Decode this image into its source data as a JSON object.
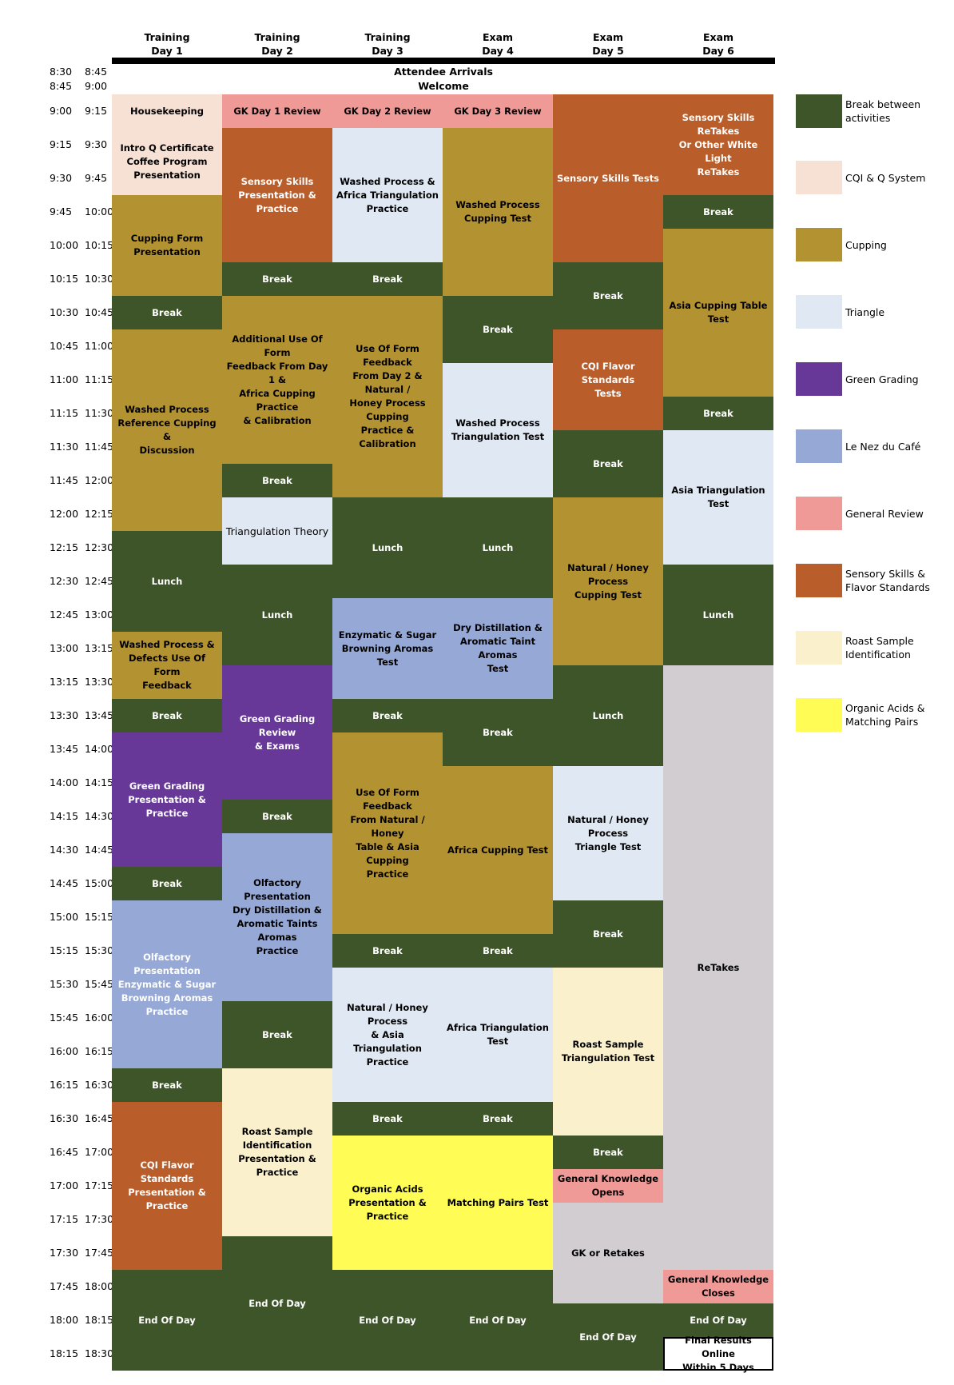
{
  "colors": {
    "break": "#3e5429",
    "cqi": "#f6e1d4",
    "cupping": "#b39232",
    "triangle": "#dfe8f3",
    "green_grading": "#683899",
    "nez": "#95a8d6",
    "review": "#f09a98",
    "sensory": "#b95d2a",
    "roast": "#fbf0cc",
    "organic": "#fffc55",
    "retakes": "#d1cdd0"
  },
  "days": [
    {
      "line1": "Training",
      "line2": "Day 1"
    },
    {
      "line1": "Training",
      "line2": "Day 2"
    },
    {
      "line1": "Training",
      "line2": "Day 3"
    },
    {
      "line1": "Exam",
      "line2": "Day 4"
    },
    {
      "line1": "Exam",
      "line2": "Day 5"
    },
    {
      "line1": "Exam",
      "line2": "Day 6"
    }
  ],
  "top_rows": [
    {
      "start": "8:30",
      "end": "8:45",
      "label": "Attendee Arrivals"
    },
    {
      "start": "8:45",
      "end": "9:00",
      "label": "Welcome"
    }
  ],
  "time_slots": [
    [
      "9:00",
      "9:15"
    ],
    [
      "9:15",
      "9:30"
    ],
    [
      "9:30",
      "9:45"
    ],
    [
      "9:45",
      "10:00"
    ],
    [
      "10:00",
      "10:15"
    ],
    [
      "10:15",
      "10:30"
    ],
    [
      "10:30",
      "10:45"
    ],
    [
      "10:45",
      "11:00"
    ],
    [
      "11:00",
      "11:15"
    ],
    [
      "11:15",
      "11:30"
    ],
    [
      "11:30",
      "11:45"
    ],
    [
      "11:45",
      "12:00"
    ],
    [
      "12:00",
      "12:15"
    ],
    [
      "12:15",
      "12:30"
    ],
    [
      "12:30",
      "12:45"
    ],
    [
      "12:45",
      "13:00"
    ],
    [
      "13:00",
      "13:15"
    ],
    [
      "13:15",
      "13:30"
    ],
    [
      "13:30",
      "13:45"
    ],
    [
      "13:45",
      "14:00"
    ],
    [
      "14:00",
      "14:15"
    ],
    [
      "14:15",
      "14:30"
    ],
    [
      "14:30",
      "14:45"
    ],
    [
      "14:45",
      "15:00"
    ],
    [
      "15:00",
      "15:15"
    ],
    [
      "15:15",
      "15:30"
    ],
    [
      "15:30",
      "15:45"
    ],
    [
      "15:45",
      "16:00"
    ],
    [
      "16:00",
      "16:15"
    ],
    [
      "16:15",
      "16:30"
    ],
    [
      "16:30",
      "16:45"
    ],
    [
      "16:45",
      "17:00"
    ],
    [
      "17:00",
      "17:15"
    ],
    [
      "17:15",
      "17:30"
    ],
    [
      "17:30",
      "17:45"
    ],
    [
      "17:45",
      "18:00"
    ],
    [
      "18:00",
      "18:15"
    ],
    [
      "18:15",
      "18:30"
    ]
  ],
  "schedule": {
    "day1": {
      "housekeeping": "Housekeeping",
      "intro": [
        "Intro Q Certificate",
        "Coffee Program",
        "Presentation"
      ],
      "cupping_form": [
        "Cupping Form",
        "Presentation"
      ],
      "break_1030": "Break",
      "washed_ref": [
        "Washed Process",
        "Reference Cupping &",
        "Discussion"
      ],
      "lunch": "Lunch",
      "washed_defects": [
        "Washed Process &",
        "Defects Use Of Form",
        "Feedback"
      ],
      "break_1330": "Break",
      "green_grading": [
        "Green Grading",
        "Presentation & Practice"
      ],
      "break_1445": "Break",
      "olfactory": [
        "Olfactory Presentation",
        "Enzymatic & Sugar",
        "Browning Aromas",
        "Practice"
      ],
      "break_1615": "Break",
      "cqi_flavor": [
        "CQI Flavor Standards",
        "Presentation & Practice"
      ],
      "end": "End Of Day"
    },
    "day2": {
      "gk_review": "GK Day 1 Review",
      "sensory": [
        "Sensory Skills",
        "Presentation & Practice"
      ],
      "break_1015": "Break",
      "additional": [
        "Additional Use Of Form",
        "Feedback From Day 1 &",
        "Africa Cupping Practice",
        "& Calibration"
      ],
      "break_1145": "Break",
      "triangulation_theory": "Triangulation Theory",
      "lunch": "Lunch",
      "green_grading_review": [
        "Green Grading Review",
        "& Exams"
      ],
      "break_1415": "Break",
      "olfactory": [
        "Olfactory Presentation",
        "Dry Distillation &",
        "Aromatic Taints Aromas",
        "Practice"
      ],
      "break_1545": "Break",
      "roast_sample": [
        "Roast Sample",
        "Identification",
        "Presentation & Practice"
      ],
      "end": "End Of Day"
    },
    "day3": {
      "gk_review": "GK Day 2 Review",
      "washed_africa": [
        "Washed Process &",
        "Africa Triangulation",
        "Practice"
      ],
      "break_1015": "Break",
      "use_of_form": [
        "Use Of Form Feedback",
        "From Day 2 & Natural /",
        "Honey Process Cupping",
        "Practice & Calibration"
      ],
      "lunch": "Lunch",
      "enzymatic": [
        "Enzymatic & Sugar",
        "Browning Aromas Test"
      ],
      "break_1330": "Break",
      "use_of_form_2": [
        "Use Of Form Feedback",
        "From Natural / Honey",
        "Table & Asia Cupping",
        "Practice"
      ],
      "break_1515": "Break",
      "natural_honey": [
        "Natural / Honey Process",
        "& Asia Triangulation",
        "Practice"
      ],
      "break_1630": "Break",
      "organic": [
        "Organic Acids",
        "Presentation & Practice"
      ],
      "end": "End Of Day"
    },
    "day4": {
      "gk_review": "GK Day 3 Review",
      "washed_cupping": [
        "Washed Process",
        "Cupping Test"
      ],
      "break_1030": "Break",
      "washed_tri": [
        "Washed Process",
        "Triangulation Test"
      ],
      "lunch": "Lunch",
      "dry_distillation": [
        "Dry Distillation &",
        "Aromatic Taint Aromas",
        "Test"
      ],
      "break_1330": "Break",
      "africa_cupping": "Africa Cupping Test",
      "break_1515": "Break",
      "africa_tri": "Africa Triangulation Test",
      "break_1630": "Break",
      "matching": "Matching Pairs Test",
      "end": "End Of Day"
    },
    "day5": {
      "sensory_tests": "Sensory Skills Tests",
      "break_1015": "Break",
      "cqi_tests": [
        "CQI Flavor Standards",
        "Tests"
      ],
      "break_1130": "Break",
      "natural_cupping": [
        "Natural / Honey Process",
        "Cupping Test"
      ],
      "lunch": "Lunch",
      "natural_triangle": [
        "Natural / Honey Process",
        "Triangle Test"
      ],
      "break_1500": "Break",
      "roast_tri": [
        "Roast Sample",
        "Triangulation Test"
      ],
      "break_1645": "Break",
      "gk_opens": [
        "General Knowledge",
        "Opens"
      ],
      "gk_retakes": "GK or Retakes",
      "end": "End Of Day"
    },
    "day6": {
      "sensory_retakes": [
        "Sensory Skills ReTakes",
        "Or Other White Light",
        "ReTakes"
      ],
      "break_945": "Break",
      "asia_cupping": "Asia Cupping Table Test",
      "break_1115": "Break",
      "asia_tri": "Asia Triangulation Test",
      "lunch": "Lunch",
      "retakes": "ReTakes",
      "gk_closes": [
        "General Knowledge",
        "Closes"
      ],
      "end": "End Of Day",
      "final": [
        "Final Results Online",
        "Within 5 Days"
      ]
    }
  },
  "legend": [
    {
      "label": [
        "Break between",
        "activities"
      ],
      "color": "#3e5429"
    },
    {
      "label": [
        "CQI & Q System"
      ],
      "color": "#f6e1d4"
    },
    {
      "label": [
        "Cupping"
      ],
      "color": "#b39232"
    },
    {
      "label": [
        "Triangle"
      ],
      "color": "#dfe8f3"
    },
    {
      "label": [
        "Green Grading"
      ],
      "color": "#683899"
    },
    {
      "label": [
        "Le Nez du Café"
      ],
      "color": "#95a8d6"
    },
    {
      "label": [
        "General Review"
      ],
      "color": "#f09a98"
    },
    {
      "label": [
        "Sensory Skills &",
        "Flavor Standards"
      ],
      "color": "#b95d2a"
    },
    {
      "label": [
        "Roast Sample",
        "Identification"
      ],
      "color": "#fbf0cc"
    },
    {
      "label": [
        "Organic Acids &",
        "Matching Pairs"
      ],
      "color": "#fffc55"
    }
  ]
}
